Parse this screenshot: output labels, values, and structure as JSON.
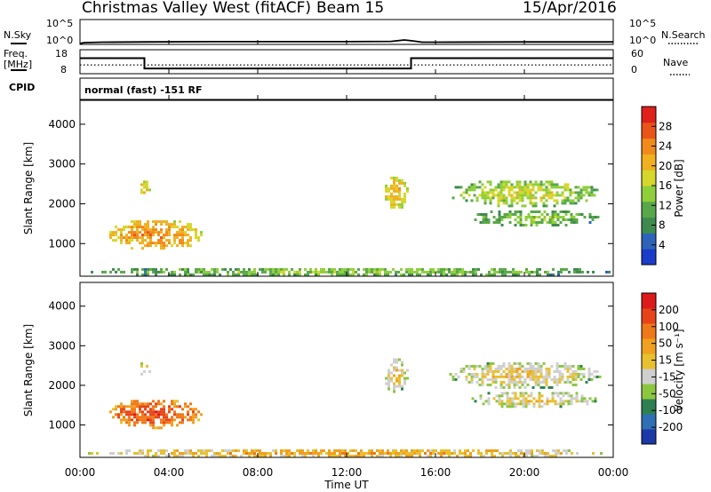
{
  "header": {
    "title": "Christmas Valley West (fitACF)",
    "beam": "Beam 15",
    "date": "15/Apr/2016"
  },
  "side_labels": {
    "nsky": "N.Sky",
    "nsky_top": "10^5",
    "nsky_bottom": "10^0",
    "freq_line1": "Freq.",
    "freq_line2": "[MHz]",
    "freq_top": "18",
    "freq_bottom": "8",
    "cpid": "CPID",
    "nsearch": "N.Search",
    "nsearch_top": "10^5",
    "nsearch_bottom": "10^0",
    "nave": "Nave",
    "nave_top": "60",
    "nave_bottom": "0",
    "cpid_text": "normal (fast) -151 RF"
  },
  "axes": {
    "ylabel": "Slant Range [km]",
    "xlabel": "Time UT",
    "xticks": [
      "00:00",
      "04:00",
      "08:00",
      "12:00",
      "16:00",
      "20:00",
      "00:00"
    ],
    "yticks": [
      "1000",
      "2000",
      "3000",
      "4000"
    ]
  },
  "colorbars": {
    "power": {
      "label": "Power [dB]",
      "ticks": [
        "4",
        "8",
        "12",
        "16",
        "20",
        "24",
        "28"
      ],
      "colors": [
        "#1a3cc8",
        "#2d63b8",
        "#3f8a4f",
        "#58a84a",
        "#8fcf3a",
        "#d7d62a",
        "#f0b020",
        "#f08a1a",
        "#ea5418",
        "#e0201a"
      ]
    },
    "velocity": {
      "label": "Velocity [m s⁻¹]",
      "ticks": [
        "200",
        "100",
        "50",
        "15",
        "-15",
        "-50",
        "-100",
        "-200"
      ],
      "colors": [
        "#1b3aa8",
        "#2f6fb5",
        "#2e7f52",
        "#8cc63f",
        "#cfcfcf",
        "#e8c030",
        "#f0a020",
        "#f07818",
        "#e8441a",
        "#dd1a1a"
      ]
    }
  },
  "chart_data": [
    {
      "type": "line",
      "title": "N.Sky / N.Search",
      "x_range_hours": [
        0,
        24
      ],
      "ylim_log10": [
        0,
        5
      ],
      "series": [
        {
          "name": "N.Sky",
          "x": [
            0,
            0.2,
            1,
            3,
            6,
            9,
            12,
            14,
            14.6,
            15,
            15.4,
            16,
            20,
            24
          ],
          "y": [
            0.2,
            0.35,
            0.45,
            0.5,
            0.55,
            0.55,
            0.55,
            0.6,
            0.9,
            0.7,
            0.45,
            0.45,
            0.5,
            0.5
          ]
        }
      ]
    },
    {
      "type": "line",
      "title": "Freq. / Nave",
      "x_range_hours": [
        0,
        24
      ],
      "ylim_freq": [
        8,
        18
      ],
      "ylim_nave": [
        0,
        60
      ],
      "series": [
        {
          "name": "Freq.",
          "x": [
            0,
            2.9,
            2.9,
            14.9,
            14.9,
            24
          ],
          "y": [
            14.5,
            14.5,
            10.2,
            10.2,
            14.5,
            14.5
          ]
        },
        {
          "name": "Nave",
          "x": [
            0,
            24
          ],
          "y": [
            22,
            22
          ]
        }
      ]
    },
    {
      "type": "heatmap",
      "title": "Power [dB]",
      "x_range_hours": [
        0,
        24
      ],
      "ylim_km": [
        180,
        4600
      ],
      "regions": [
        {
          "t0": 1.2,
          "t1": 5.5,
          "r0": 850,
          "r1": 1650,
          "level": 6
        },
        {
          "t0": 2.6,
          "t1": 3.1,
          "r0": 2250,
          "r1": 2650,
          "level": 5
        },
        {
          "t0": 13.6,
          "t1": 14.7,
          "r0": 1850,
          "r1": 2750,
          "level": 5
        },
        {
          "t0": 16.5,
          "t1": 23.4,
          "r0": 1950,
          "r1": 2650,
          "level": 4
        },
        {
          "t0": 17.5,
          "t1": 23.3,
          "r0": 1450,
          "r1": 1900,
          "level": 3
        },
        {
          "t0": 0,
          "t1": 24,
          "r0": 200,
          "r1": 450,
          "level": 3
        }
      ]
    },
    {
      "type": "heatmap",
      "title": "Velocity [m s⁻¹]",
      "x_range_hours": [
        0,
        24
      ],
      "ylim_km": [
        180,
        4600
      ],
      "regions": [
        {
          "t0": 1.2,
          "t1": 5.5,
          "r0": 950,
          "r1": 1700,
          "level": 7
        },
        {
          "t0": 2.6,
          "t1": 3.1,
          "r0": 2250,
          "r1": 2650,
          "level": 4
        },
        {
          "t0": 13.6,
          "t1": 14.7,
          "r0": 1850,
          "r1": 2750,
          "level": 4
        },
        {
          "t0": 16.5,
          "t1": 23.4,
          "r0": 1950,
          "r1": 2650,
          "level": 4
        },
        {
          "t0": 17.5,
          "t1": 23.3,
          "r0": 1450,
          "r1": 1900,
          "level": 4
        },
        {
          "t0": 0,
          "t1": 24,
          "r0": 200,
          "r1": 450,
          "level": 5
        }
      ]
    }
  ]
}
